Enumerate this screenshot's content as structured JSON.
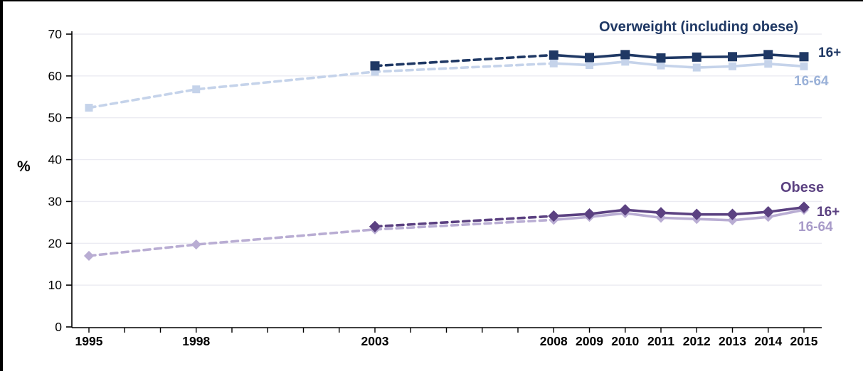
{
  "chart_data": {
    "type": "line",
    "title": "",
    "ylabel": "%",
    "ylim": [
      0,
      70
    ],
    "yticks": [
      0,
      10,
      20,
      30,
      40,
      50,
      60,
      70
    ],
    "x_range": [
      1995,
      2015
    ],
    "xtick_labeled": [
      "1995",
      "1998",
      "2003",
      "2008",
      "2009",
      "2010",
      "2011",
      "2012",
      "2013",
      "2014",
      "2015"
    ],
    "minor_x_ticks": "every year 1995-2015",
    "grid": "horizontal, very light",
    "legend_position": "inline labels at line ends",
    "dashed_before_year": 2008,
    "axis_color": "#000000",
    "gridline_color": "#EBEBF2",
    "groups": [
      {
        "title": "Overweight (including obese)",
        "color": "#1F3864"
      },
      {
        "title": "Obese",
        "color": "#5B4181"
      }
    ],
    "series": [
      {
        "group": "Overweight (including obese)",
        "label": "16-64",
        "color": "#C5D3EA",
        "label_color": "#9AB1D8",
        "marker": "square",
        "marker_size": 11,
        "points": [
          [
            1995,
            52.4
          ],
          [
            1998,
            56.8
          ],
          [
            2003,
            61.0
          ],
          [
            2008,
            63.0
          ],
          [
            2009,
            62.6
          ],
          [
            2010,
            63.4
          ],
          [
            2011,
            62.5
          ],
          [
            2012,
            62.0
          ],
          [
            2013,
            62.3
          ],
          [
            2014,
            62.9
          ],
          [
            2015,
            62.3
          ]
        ]
      },
      {
        "group": "Overweight (including obese)",
        "label": "16+",
        "color": "#1F3864",
        "label_color": "#1F3864",
        "marker": "square",
        "marker_size": 13,
        "points": [
          [
            2003,
            62.4
          ],
          [
            2008,
            65.0
          ],
          [
            2009,
            64.4
          ],
          [
            2010,
            65.1
          ],
          [
            2011,
            64.3
          ],
          [
            2012,
            64.5
          ],
          [
            2013,
            64.6
          ],
          [
            2014,
            65.1
          ],
          [
            2015,
            64.6
          ]
        ]
      },
      {
        "group": "Obese",
        "label": "16-64",
        "color": "#B9ADD3",
        "label_color": "#A89BC9",
        "marker": "diamond",
        "marker_size": 10,
        "points": [
          [
            1995,
            17.0
          ],
          [
            1998,
            19.7
          ],
          [
            2003,
            23.3
          ],
          [
            2008,
            25.6
          ],
          [
            2009,
            26.3
          ],
          [
            2010,
            27.2
          ],
          [
            2011,
            26.1
          ],
          [
            2012,
            25.8
          ],
          [
            2013,
            25.5
          ],
          [
            2014,
            26.3
          ],
          [
            2015,
            28.0
          ]
        ]
      },
      {
        "group": "Obese",
        "label": "16+",
        "color": "#5B4181",
        "label_color": "#5B4181",
        "marker": "diamond",
        "marker_size": 11.5,
        "points": [
          [
            2003,
            24.0
          ],
          [
            2008,
            26.5
          ],
          [
            2009,
            27.0
          ],
          [
            2010,
            28.0
          ],
          [
            2011,
            27.3
          ],
          [
            2012,
            26.9
          ],
          [
            2013,
            26.9
          ],
          [
            2014,
            27.5
          ],
          [
            2015,
            28.6
          ]
        ]
      }
    ]
  }
}
